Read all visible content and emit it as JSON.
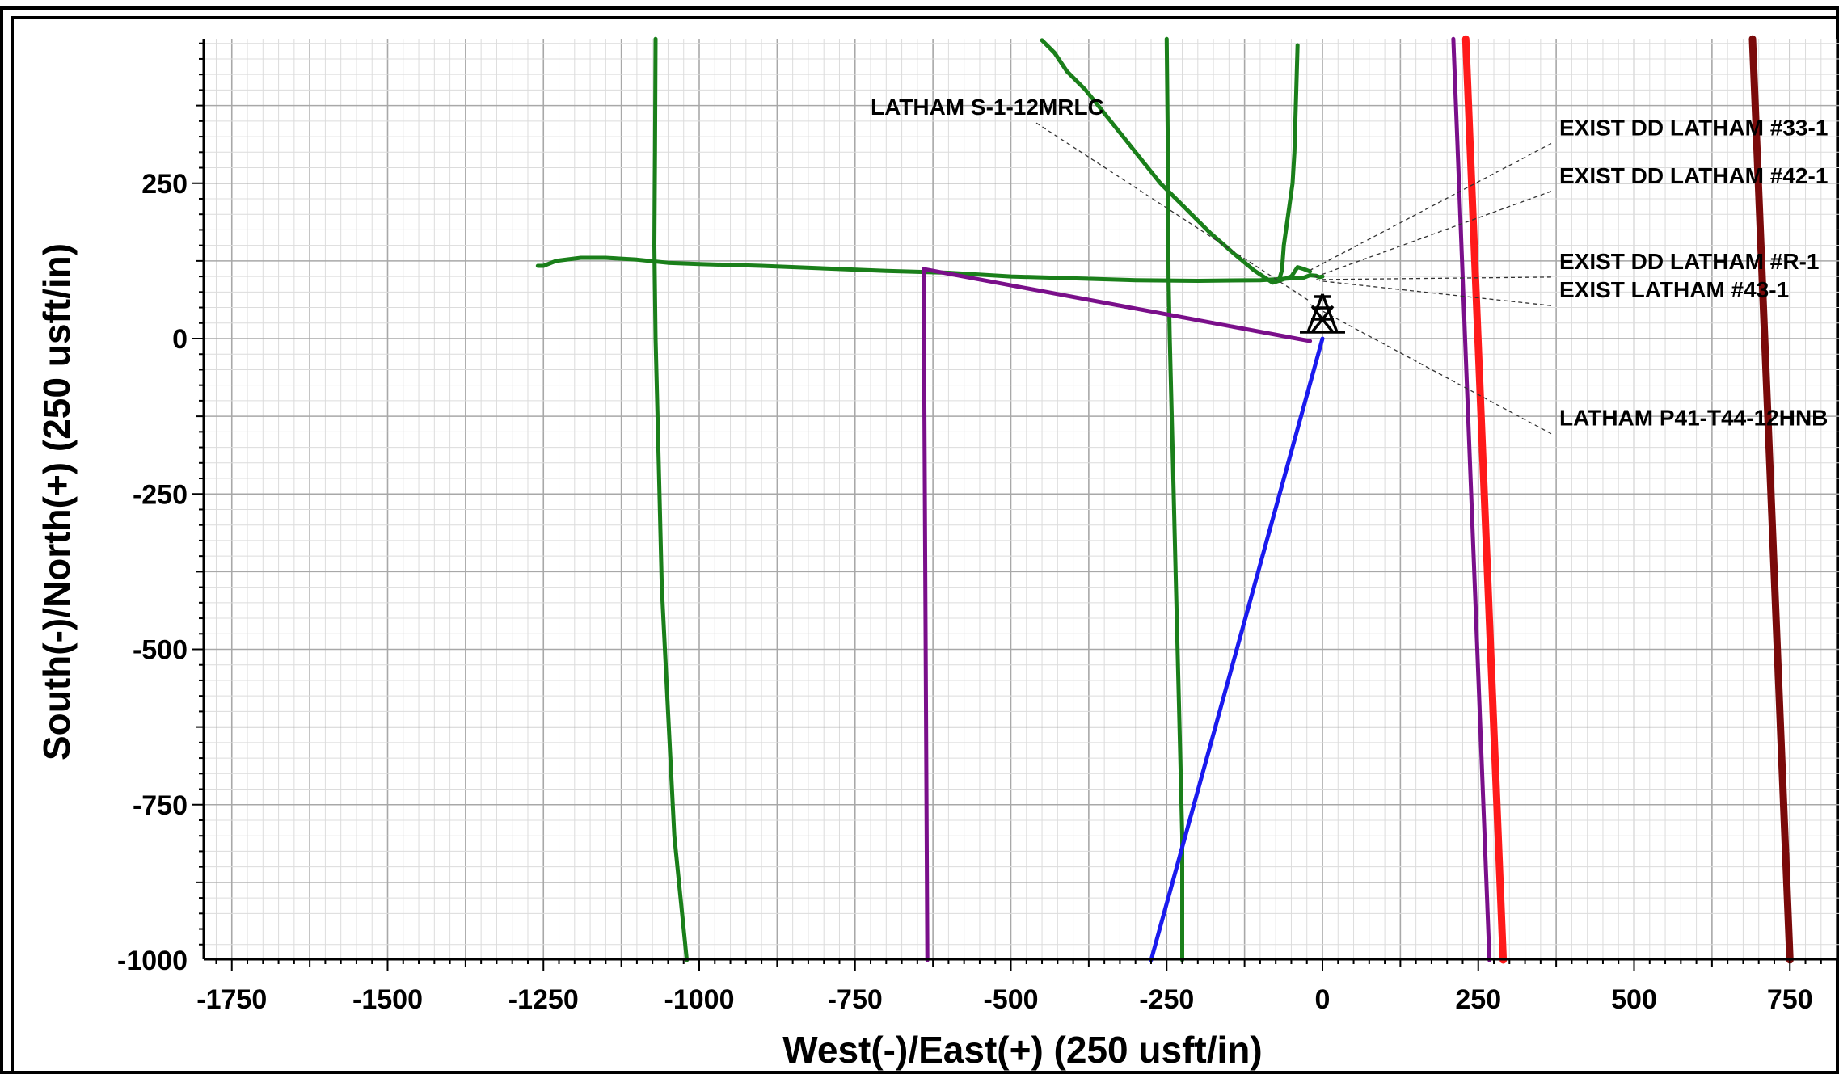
{
  "chart_data": {
    "type": "line",
    "xlabel": "West(-)/East(+) (250 usft/in)",
    "ylabel": "South(-)/North(+) (250 usft/in)",
    "xlim": [
      -1800,
      830
    ],
    "ylim": [
      -1000,
      485
    ],
    "x_ticks": [
      -1750,
      -1500,
      -1250,
      -1000,
      -750,
      -500,
      -250,
      0,
      250,
      500,
      750
    ],
    "y_ticks": [
      -1000,
      -750,
      -500,
      -250,
      0,
      250
    ],
    "x_tick_labels": [
      "-1750",
      "-1500",
      "-1250",
      "-1000",
      "-750",
      "-500",
      "-250",
      "0",
      "250",
      "500",
      "750"
    ],
    "y_tick_labels": [
      "-1000",
      "-750",
      "-500",
      "-250",
      "0",
      "250"
    ],
    "grid": true,
    "series": [
      {
        "color": "#1a7f1a",
        "points": [
          [
            -1259,
            117
          ],
          [
            -1250,
            117
          ],
          [
            -1230,
            125
          ],
          [
            -1190,
            130
          ],
          [
            -1150,
            130
          ],
          [
            -1100,
            127
          ],
          [
            -1050,
            122
          ],
          [
            -1000,
            120
          ],
          [
            -900,
            117
          ],
          [
            -800,
            113
          ],
          [
            -700,
            109
          ],
          [
            -600,
            106
          ],
          [
            -500,
            100
          ],
          [
            -400,
            97
          ],
          [
            -300,
            94
          ],
          [
            -200,
            93
          ],
          [
            -100,
            94
          ],
          [
            -80,
            95
          ],
          [
            -50,
            97
          ],
          [
            -30,
            98
          ],
          [
            -20,
            102
          ],
          [
            -10,
            101
          ],
          [
            -5,
            99
          ],
          [
            0,
            100
          ]
        ]
      },
      {
        "color": "#1a7f1a",
        "points": [
          [
            -1070,
            482
          ],
          [
            -1071,
            300
          ],
          [
            -1072,
            150
          ],
          [
            -1070,
            0
          ],
          [
            -1065,
            -200
          ],
          [
            -1060,
            -400
          ],
          [
            -1050,
            -600
          ],
          [
            -1040,
            -800
          ],
          [
            -1030,
            -900
          ],
          [
            -1020,
            -1000
          ]
        ]
      },
      {
        "color": "#1a7f1a",
        "points": [
          [
            -450,
            480
          ],
          [
            -430,
            460
          ],
          [
            -410,
            430
          ],
          [
            -380,
            400
          ],
          [
            -340,
            350
          ],
          [
            -300,
            300
          ],
          [
            -260,
            250
          ],
          [
            -220,
            210
          ],
          [
            -180,
            170
          ],
          [
            -140,
            135
          ],
          [
            -110,
            110
          ],
          [
            -80,
            90
          ],
          [
            -70,
            93
          ]
        ]
      },
      {
        "color": "#1a7f1a",
        "points": [
          [
            -250,
            482
          ],
          [
            -248,
            300
          ],
          [
            -247,
            100
          ],
          [
            -245,
            0
          ],
          [
            -240,
            -200
          ],
          [
            -235,
            -400
          ],
          [
            -230,
            -600
          ],
          [
            -225,
            -800
          ],
          [
            -225,
            -1000
          ]
        ]
      },
      {
        "color": "#1a7f1a",
        "points": [
          [
            -40,
            472
          ],
          [
            -42,
            400
          ],
          [
            -45,
            300
          ],
          [
            -48,
            250
          ],
          [
            -55,
            200
          ],
          [
            -62,
            150
          ],
          [
            -65,
            110
          ],
          [
            -70,
            93
          ],
          [
            -50,
            100
          ],
          [
            -40,
            115
          ],
          [
            -30,
            112
          ],
          [
            -20,
            108
          ]
        ]
      },
      {
        "color": "#7a0f8a",
        "points": [
          [
            -640,
            112
          ],
          [
            -20,
            -4
          ]
        ]
      },
      {
        "color": "#7a0f8a",
        "points": [
          [
            -640,
            112
          ],
          [
            -634,
            -1000
          ]
        ]
      },
      {
        "color": "#7a0f8a",
        "points": [
          [
            210,
            482
          ],
          [
            268,
            -1000
          ]
        ]
      },
      {
        "color": "#1a1aee",
        "points": [
          [
            0,
            0
          ],
          [
            -275,
            -1000
          ]
        ]
      },
      {
        "color": "#ff1a1a",
        "points": [
          [
            230,
            482
          ],
          [
            290,
            -1000
          ]
        ]
      },
      {
        "color": "#7a0a0a",
        "points": [
          [
            690,
            482
          ],
          [
            750,
            -1000
          ]
        ]
      }
    ],
    "annotations": [
      {
        "text": "LATHAM S-1-12MRLC",
        "anchor": [
          -725,
          360
        ],
        "target": [
          -20,
          60
        ]
      },
      {
        "text": "EXIST DD LATHAM #33-1",
        "anchor": [
          380,
          327
        ],
        "target": [
          -20,
          110
        ]
      },
      {
        "text": "EXIST DD LATHAM #42-1",
        "anchor": [
          380,
          250
        ],
        "target": [
          -15,
          98
        ]
      },
      {
        "text": "EXIST DD LATHAM #R-1",
        "anchor": [
          380,
          112
        ],
        "target": [
          -10,
          95
        ]
      },
      {
        "text": "EXIST LATHAM #43-1",
        "anchor": [
          380,
          66
        ],
        "target": [
          -5,
          93
        ]
      },
      {
        "text": "LATHAM P41-T44-12HNB",
        "anchor": [
          380,
          -140
        ],
        "target": [
          -20,
          55
        ]
      }
    ],
    "rig_location": [
      0,
      0
    ]
  }
}
